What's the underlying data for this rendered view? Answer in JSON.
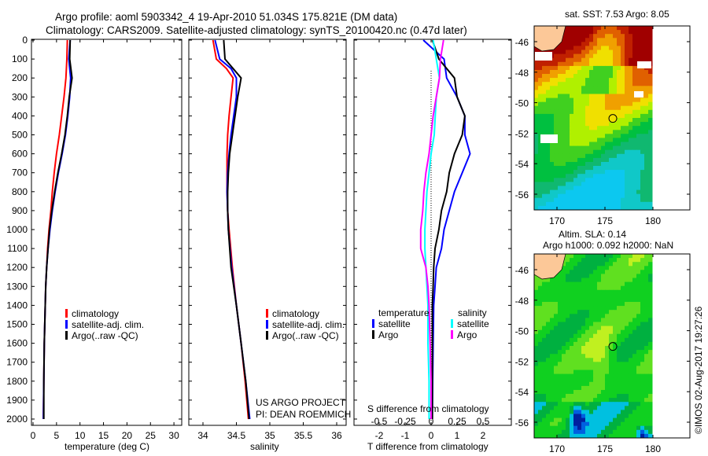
{
  "title_line1": "Argo profile: aoml 5903342_4 19-Apr-2010 51.034S 175.821E (DM data)",
  "title_line2": "Climatology: CARS2009. Satellite-adjusted climatology: synTS_20100420.nc (0.47d later)",
  "colors": {
    "climatology": "#ff0000",
    "satellite": "#0000ff",
    "argo": "#000000",
    "s_satellite": "#00ffff",
    "s_argo": "#ff00ff"
  },
  "depth_ticks": [
    "0",
    "100",
    "200",
    "300",
    "400",
    "500",
    "600",
    "700",
    "800",
    "900",
    "1000",
    "1100",
    "1200",
    "1300",
    "1400",
    "1500",
    "1600",
    "1700",
    "1800",
    "1900",
    "2000"
  ],
  "chart_data": [
    {
      "type": "line",
      "id": "temperature",
      "xlabel": "temperature (deg C)",
      "ylabel": "depth",
      "xlim": [
        -0.3,
        31.5
      ],
      "ylim": [
        2035,
        0
      ],
      "xticks": [
        "0",
        "5",
        "10",
        "15",
        "20",
        "25",
        "30"
      ],
      "legend": [
        "climatology",
        "satellite-adj. clim.",
        "Argo(..raw -QC)"
      ],
      "depth": [
        0,
        100,
        200,
        300,
        400,
        500,
        600,
        700,
        800,
        900,
        1000,
        1100,
        1200,
        1300,
        1400,
        1600,
        1800,
        2000
      ],
      "series": [
        {
          "name": "climatology",
          "values": [
            7.3,
            7.2,
            7.0,
            6.6,
            6.1,
            5.6,
            5.0,
            4.5,
            4.1,
            3.8,
            3.4,
            3.1,
            2.9,
            2.7,
            2.6,
            2.4,
            2.3,
            2.2
          ]
        },
        {
          "name": "satellite-adj. clim.",
          "values": [
            7.9,
            7.6,
            8.0,
            7.8,
            7.4,
            6.9,
            6.2,
            5.4,
            4.7,
            4.1,
            3.6,
            3.2,
            2.9,
            2.7,
            2.6,
            2.4,
            2.3,
            2.2
          ]
        },
        {
          "name": "Argo",
          "values": [
            7.9,
            7.8,
            8.3,
            7.7,
            7.3,
            6.8,
            6.1,
            5.3,
            4.6,
            4.0,
            3.5,
            3.2,
            2.9,
            2.7,
            2.6,
            2.4,
            2.3,
            2.3
          ]
        }
      ]
    },
    {
      "type": "line",
      "id": "salinity",
      "xlabel": "salinity",
      "ylabel": "depth",
      "xlim": [
        33.8,
        36.05
      ],
      "ylim": [
        2035,
        0
      ],
      "xticks": [
        "34",
        "34.5",
        "35",
        "35.5",
        "36"
      ],
      "legend": [
        "climatology",
        "satellite-adj. clim.",
        "Argo(..raw -QC)"
      ],
      "annotation": [
        "US ARGO PROJECT",
        "PI: DEAN ROEMMICH"
      ],
      "depth": [
        0,
        100,
        150,
        200,
        300,
        400,
        500,
        600,
        700,
        800,
        900,
        1000,
        1200,
        1400,
        1600,
        1800,
        2000
      ],
      "series": [
        {
          "name": "climatology",
          "values": [
            34.15,
            34.2,
            34.35,
            34.45,
            34.42,
            34.39,
            34.37,
            34.36,
            34.36,
            34.36,
            34.37,
            34.39,
            34.44,
            34.5,
            34.57,
            34.63,
            34.68
          ]
        },
        {
          "name": "satellite-adj. clim.",
          "values": [
            34.18,
            34.25,
            34.42,
            34.5,
            34.5,
            34.46,
            34.42,
            34.39,
            34.37,
            34.36,
            34.37,
            34.38,
            34.43,
            34.5,
            34.57,
            34.64,
            34.7
          ]
        },
        {
          "name": "Argo",
          "values": [
            34.31,
            34.33,
            34.45,
            34.57,
            34.52,
            34.48,
            34.44,
            34.4,
            34.38,
            34.37,
            34.37,
            34.38,
            34.42,
            34.5,
            34.57,
            34.64,
            34.69
          ]
        }
      ]
    },
    {
      "type": "line",
      "id": "differences",
      "xlabel": "T difference from climatology",
      "x2label": "S difference from climatology",
      "xlim": [
        -3,
        3
      ],
      "x2lim": [
        -0.75,
        0.75
      ],
      "ylim": [
        2035,
        0
      ],
      "xticks": [
        "-2",
        "-1",
        "0",
        "1",
        "2"
      ],
      "x2ticks": [
        "-0.5",
        "-0.25",
        "0",
        "0.25",
        "0.5"
      ],
      "legend": {
        "temperature": "temperature",
        "salinity": "salinity",
        "satellite": "satellite",
        "argo": "Argo"
      },
      "depth": [
        0,
        100,
        200,
        300,
        400,
        500,
        600,
        700,
        800,
        900,
        1000,
        1100,
        1200,
        1300,
        1400,
        1600,
        1800,
        2000
      ],
      "series": [
        {
          "name": "T satellite",
          "axis": "T",
          "values": [
            -0.3,
            0.5,
            0.6,
            1.0,
            1.3,
            1.3,
            1.5,
            1.2,
            0.9,
            0.7,
            0.5,
            0.4,
            0.2,
            0.15,
            0.1,
            0.08,
            0.06,
            0.05
          ]
        },
        {
          "name": "T Argo",
          "axis": "T",
          "values": [
            0.05,
            0.3,
            0.9,
            1.0,
            1.3,
            1.2,
            0.9,
            0.7,
            0.6,
            0.4,
            0.3,
            0.15,
            0.1,
            0.08,
            0.05,
            0.05,
            0.05,
            0.05
          ]
        },
        {
          "name": "S satellite",
          "axis": "S",
          "values": [
            0.02,
            0.05,
            0.08,
            0.05,
            0.04,
            0.03,
            0.0,
            -0.02,
            -0.04,
            -0.05,
            -0.06,
            -0.06,
            -0.05,
            -0.04,
            -0.03,
            -0.03,
            -0.02,
            -0.02
          ]
        },
        {
          "name": "S Argo",
          "axis": "S",
          "values": [
            0.12,
            0.09,
            0.08,
            0.05,
            0.02,
            0.0,
            -0.02,
            -0.05,
            -0.07,
            -0.08,
            -0.1,
            -0.1,
            -0.05,
            -0.03,
            -0.02,
            -0.01,
            0.0,
            0.0
          ]
        }
      ]
    },
    {
      "type": "heatmap",
      "id": "sst-map",
      "title": "sat. SST: 7.53 Argo: 8.05",
      "xticks": [
        "170",
        "175",
        "180"
      ],
      "yticks": [
        "-46",
        "-48",
        "-50",
        "-52",
        "-54",
        "-56"
      ],
      "xlim": [
        167.6,
        184
      ],
      "ylim": [
        -57,
        -45
      ],
      "argo_position": {
        "lon": 175.821,
        "lat": -51.034
      }
    },
    {
      "type": "heatmap",
      "id": "sla-map",
      "title": "Altim. SLA: 0.14",
      "subtitle": "Argo h1000: 0.092 h2000: NaN",
      "xticks": [
        "170",
        "175",
        "180"
      ],
      "yticks": [
        "-46",
        "-48",
        "-50",
        "-52",
        "-54",
        "-56"
      ],
      "xlim": [
        167.6,
        184
      ],
      "ylim": [
        -57,
        -45
      ],
      "argo_position": {
        "lon": 175.821,
        "lat": -51.034
      }
    }
  ],
  "credit": "©IMOS 02-Aug-2017 19:27:26"
}
